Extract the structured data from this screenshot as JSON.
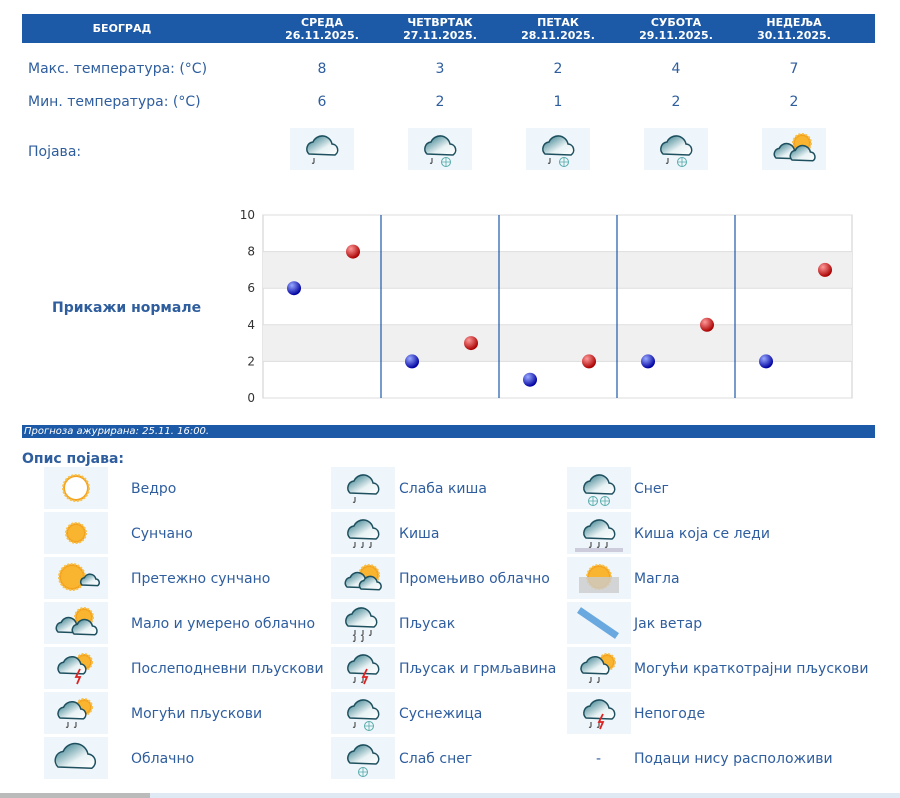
{
  "header": {
    "city": "БЕОГРАД",
    "days": [
      {
        "day": "СРЕДА",
        "date": "26.11.2025."
      },
      {
        "day": "ЧЕТВРТАК",
        "date": "27.11.2025."
      },
      {
        "day": "ПЕТАК",
        "date": "28.11.2025."
      },
      {
        "day": "СУБОТА",
        "date": "29.11.2025."
      },
      {
        "day": "НЕДЕЉА",
        "date": "30.11.2025."
      }
    ]
  },
  "rows": {
    "max_label": "Макс. температура: (°C)",
    "min_label": "Мин. температура: (°C)",
    "icon_label": "Појава:"
  },
  "forecast": {
    "max": [
      "8",
      "3",
      "2",
      "4",
      "7"
    ],
    "min": [
      "6",
      "2",
      "1",
      "2",
      "2"
    ],
    "icons": [
      "light-rain",
      "rain-snow",
      "rain-snow",
      "rain-snow",
      "partly-cloudy"
    ]
  },
  "chart_data": {
    "type": "scatter",
    "ylim": [
      0,
      10
    ],
    "yticks": [
      "0",
      "2",
      "4",
      "6",
      "8",
      "10"
    ],
    "series": [
      {
        "name": "min",
        "color": "#1010c0",
        "values": [
          6,
          2,
          1,
          2,
          2
        ]
      },
      {
        "name": "max",
        "color": "#d01010",
        "values": [
          8,
          3,
          2,
          4,
          7
        ]
      }
    ]
  },
  "show_normals": "Прикажи нормале",
  "updated": "Прогноза ажурирана:  25.11. 16:00.",
  "legend_title": "Опис појава:",
  "legend": [
    [
      {
        "icon": "clear",
        "label": "Ведро"
      },
      {
        "icon": "light-rain",
        "label": "Слаба киша"
      },
      {
        "icon": "snow",
        "label": "Снег"
      }
    ],
    [
      {
        "icon": "sunny",
        "label": "Сунчано"
      },
      {
        "icon": "rain",
        "label": "Киша"
      },
      {
        "icon": "freezing-rain",
        "label": "Киша која се леди"
      }
    ],
    [
      {
        "icon": "mostly-sunny",
        "label": "Претежно сунчано"
      },
      {
        "icon": "variable",
        "label": "Промењиво облачно"
      },
      {
        "icon": "fog",
        "label": "Магла"
      }
    ],
    [
      {
        "icon": "partly-cloudy",
        "label": "Мало и умерено облачно"
      },
      {
        "icon": "shower",
        "label": "Пљусак"
      },
      {
        "icon": "wind",
        "label": "Јак ветар"
      }
    ],
    [
      {
        "icon": "afternoon-showers",
        "label": "Послеподневни пљускови"
      },
      {
        "icon": "thunder-shower",
        "label": "Пљусак и грмљавина"
      },
      {
        "icon": "brief-showers",
        "label": "Могући краткотрајни пљускови"
      }
    ],
    [
      {
        "icon": "possible-showers",
        "label": "Могући пљускови"
      },
      {
        "icon": "sleet",
        "label": "Суснежица"
      },
      {
        "icon": "storm",
        "label": "Непогоде"
      }
    ],
    [
      {
        "icon": "cloudy",
        "label": "Облачно"
      },
      {
        "icon": "light-snow",
        "label": "Слаб снег"
      },
      {
        "icon": "none",
        "label": "Подаци нису расположиви",
        "dash": "-"
      }
    ]
  ]
}
